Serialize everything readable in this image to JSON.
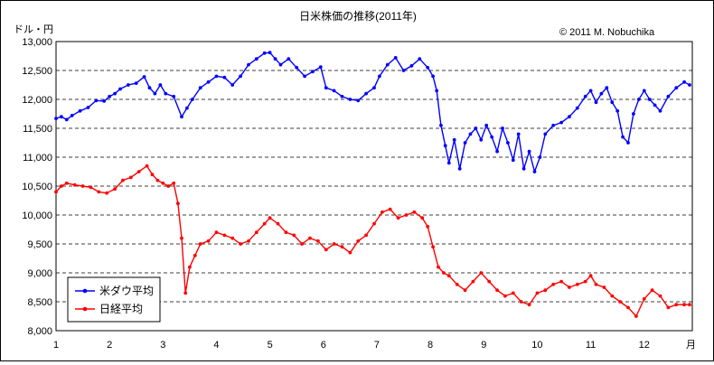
{
  "chart_data": {
    "type": "line",
    "title": "日米株価の推移(2011年)",
    "ylabel": "ドル・円",
    "xlabel": "月",
    "copyright": "© 2011 M. Nobuchika",
    "ylim": [
      8000,
      13000
    ],
    "yticks": [
      8000,
      8500,
      9000,
      9500,
      10000,
      10500,
      11000,
      11500,
      12000,
      12500,
      13000
    ],
    "ytick_labels": [
      "8,000",
      "8,500",
      "9,000",
      "9,500",
      "10,000",
      "10,500",
      "11,000",
      "11,500",
      "12,000",
      "12,500",
      "13,000"
    ],
    "xlim": [
      1,
      12.9
    ],
    "xticks": [
      1,
      2,
      3,
      4,
      5,
      6,
      7,
      8,
      9,
      10,
      11,
      12
    ],
    "xtick_labels": [
      "1",
      "2",
      "3",
      "4",
      "5",
      "6",
      "7",
      "8",
      "9",
      "10",
      "11",
      "12"
    ],
    "grid": "horizontal dashed",
    "legend_position": "bottom-left",
    "series": [
      {
        "name": "米ダウ平均",
        "color": "#0000ff",
        "x": [
          1.0,
          1.1,
          1.2,
          1.3,
          1.45,
          1.6,
          1.75,
          1.9,
          2.0,
          2.1,
          2.2,
          2.35,
          2.5,
          2.65,
          2.75,
          2.85,
          2.95,
          3.05,
          3.2,
          3.35,
          3.45,
          3.55,
          3.7,
          3.85,
          4.0,
          4.15,
          4.3,
          4.45,
          4.6,
          4.75,
          4.9,
          5.0,
          5.1,
          5.2,
          5.35,
          5.5,
          5.65,
          5.8,
          5.95,
          6.05,
          6.2,
          6.35,
          6.5,
          6.65,
          6.8,
          6.95,
          7.05,
          7.2,
          7.35,
          7.5,
          7.65,
          7.8,
          7.95,
          8.05,
          8.12,
          8.2,
          8.28,
          8.35,
          8.45,
          8.55,
          8.65,
          8.75,
          8.85,
          8.95,
          9.05,
          9.15,
          9.25,
          9.35,
          9.45,
          9.55,
          9.65,
          9.75,
          9.85,
          9.95,
          10.05,
          10.15,
          10.3,
          10.45,
          10.6,
          10.75,
          10.9,
          11.0,
          11.1,
          11.2,
          11.3,
          11.4,
          11.5,
          11.6,
          11.7,
          11.8,
          11.9,
          12.0,
          12.1,
          12.2,
          12.3,
          12.45,
          12.6,
          12.75,
          12.85
        ],
        "values": [
          11670,
          11700,
          11650,
          11720,
          11800,
          11860,
          11980,
          11970,
          12050,
          12100,
          12180,
          12250,
          12280,
          12390,
          12200,
          12100,
          12250,
          12100,
          12050,
          11700,
          11850,
          12000,
          12200,
          12300,
          12400,
          12380,
          12250,
          12400,
          12600,
          12700,
          12800,
          12810,
          12700,
          12600,
          12700,
          12550,
          12400,
          12480,
          12560,
          12200,
          12150,
          12050,
          12000,
          11980,
          12100,
          12200,
          12400,
          12600,
          12720,
          12500,
          12580,
          12700,
          12550,
          12400,
          12150,
          11550,
          11200,
          10900,
          11300,
          10800,
          11250,
          11400,
          11500,
          11300,
          11550,
          11350,
          11100,
          11500,
          11250,
          10950,
          11400,
          10800,
          11100,
          10750,
          11000,
          11400,
          11550,
          11600,
          11700,
          11850,
          12050,
          12150,
          11950,
          12100,
          12200,
          11950,
          11800,
          11350,
          11250,
          11750,
          12000,
          12150,
          12000,
          11900,
          11800,
          12050,
          12200,
          12300,
          12250
        ]
      },
      {
        "name": "日経平均",
        "color": "#ff0000",
        "x": [
          1.0,
          1.1,
          1.2,
          1.35,
          1.5,
          1.65,
          1.8,
          1.95,
          2.1,
          2.25,
          2.4,
          2.55,
          2.7,
          2.8,
          2.9,
          3.0,
          3.1,
          3.2,
          3.28,
          3.35,
          3.42,
          3.5,
          3.6,
          3.7,
          3.85,
          4.0,
          4.15,
          4.3,
          4.45,
          4.6,
          4.75,
          4.9,
          5.0,
          5.15,
          5.3,
          5.45,
          5.6,
          5.75,
          5.9,
          6.05,
          6.2,
          6.35,
          6.5,
          6.65,
          6.8,
          6.95,
          7.1,
          7.25,
          7.4,
          7.55,
          7.7,
          7.85,
          7.95,
          8.05,
          8.15,
          8.25,
          8.35,
          8.5,
          8.65,
          8.8,
          8.95,
          9.1,
          9.25,
          9.4,
          9.55,
          9.7,
          9.85,
          10.0,
          10.15,
          10.3,
          10.45,
          10.6,
          10.75,
          10.9,
          11.0,
          11.1,
          11.25,
          11.4,
          11.55,
          11.7,
          11.85,
          12.0,
          12.15,
          12.3,
          12.45,
          12.6,
          12.75,
          12.85
        ],
        "values": [
          10400,
          10500,
          10550,
          10520,
          10500,
          10480,
          10400,
          10380,
          10450,
          10600,
          10650,
          10750,
          10850,
          10700,
          10600,
          10550,
          10500,
          10550,
          10200,
          9600,
          8650,
          9100,
          9300,
          9500,
          9550,
          9700,
          9650,
          9600,
          9500,
          9550,
          9700,
          9850,
          9950,
          9850,
          9700,
          9650,
          9500,
          9600,
          9550,
          9400,
          9500,
          9450,
          9350,
          9550,
          9650,
          9850,
          10050,
          10100,
          9950,
          10000,
          10050,
          9950,
          9800,
          9450,
          9100,
          9000,
          8950,
          8800,
          8700,
          8850,
          9000,
          8850,
          8700,
          8600,
          8650,
          8500,
          8450,
          8650,
          8700,
          8800,
          8850,
          8750,
          8800,
          8850,
          8950,
          8800,
          8750,
          8600,
          8500,
          8400,
          8250,
          8550,
          8700,
          8600,
          8400,
          8450,
          8450,
          8450
        ]
      }
    ]
  }
}
